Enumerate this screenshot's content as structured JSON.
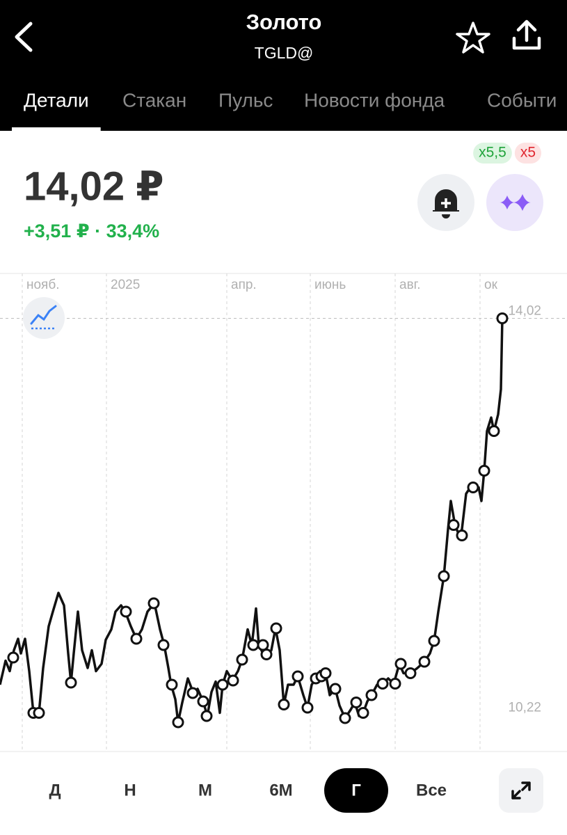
{
  "header": {
    "title": "Золото",
    "subtitle": "TGLD@"
  },
  "tabs": {
    "items": [
      "Детали",
      "Стакан",
      "Пульс",
      "Новости фонда",
      "Событи"
    ],
    "active": 0
  },
  "quote": {
    "price": "14,02 ₽",
    "change": "+3,51 ₽ · 33,4%",
    "badges": [
      "x5,5",
      "x5"
    ]
  },
  "chart_data": {
    "type": "line",
    "xlim": [
      0,
      407.5
    ],
    "ylim": [
      9.87,
      14.45
    ],
    "xticks": [
      {
        "value": 16,
        "label": "нояб."
      },
      {
        "value": 76.5,
        "label": "2025"
      },
      {
        "value": 163,
        "label": "апр."
      },
      {
        "value": 223,
        "label": "июнь"
      },
      {
        "value": 284,
        "label": "авг."
      },
      {
        "value": 345,
        "label": "ок"
      }
    ],
    "yticks": [
      {
        "value": 14.02,
        "label": "14,02"
      },
      {
        "value": 10.22,
        "label": "10,22"
      }
    ],
    "last_value_line": true,
    "series": [
      {
        "color": "#111111",
        "x": [
          0,
          4,
          7,
          10,
          13,
          15,
          18,
          21,
          24,
          28,
          31,
          35,
          38,
          42,
          46,
          49,
          51,
          53,
          56,
          59,
          63,
          66,
          69,
          73,
          76,
          80,
          83,
          87,
          90,
          94,
          98,
          102,
          106,
          111,
          115,
          118,
          121,
          123,
          126,
          128,
          131,
          135,
          139,
          142,
          146,
          149,
          152,
          155,
          158,
          160,
          163,
          167,
          171,
          174,
          178,
          181,
          184,
          186,
          189,
          192,
          195,
          198,
          201,
          204,
          207,
          211,
          214,
          218,
          221,
          224,
          227,
          230,
          234,
          237,
          241,
          244,
          248,
          252,
          255,
          258,
          261,
          264,
          267,
          271,
          275,
          279,
          283,
          287,
          290,
          295,
          300,
          305,
          309,
          312,
          315,
          319,
          322,
          324,
          327,
          330,
          332,
          335,
          338,
          341,
          344,
          346,
          348,
          350,
          353,
          355,
          358,
          360,
          361
        ],
        "values": [
          10.51,
          10.74,
          10.64,
          10.84,
          10.95,
          10.81,
          10.95,
          10.64,
          10.24,
          10.24,
          10.67,
          11.07,
          11.21,
          11.39,
          11.27,
          10.81,
          10.53,
          10.81,
          11.21,
          10.84,
          10.67,
          10.84,
          10.64,
          10.71,
          10.94,
          11.04,
          11.21,
          11.27,
          11.21,
          11.07,
          10.95,
          11.04,
          11.21,
          11.29,
          11.04,
          10.89,
          10.67,
          10.51,
          10.37,
          10.15,
          10.34,
          10.57,
          10.43,
          10.47,
          10.35,
          10.21,
          10.44,
          10.54,
          10.24,
          10.51,
          10.64,
          10.55,
          10.64,
          10.75,
          11.04,
          10.89,
          11.24,
          10.89,
          10.81,
          10.79,
          10.84,
          11.05,
          10.84,
          10.32,
          10.51,
          10.51,
          10.59,
          10.41,
          10.29,
          10.51,
          10.57,
          10.64,
          10.62,
          10.41,
          10.47,
          10.31,
          10.19,
          10.27,
          10.34,
          10.21,
          10.24,
          10.35,
          10.41,
          10.51,
          10.52,
          10.57,
          10.52,
          10.71,
          10.62,
          10.62,
          10.67,
          10.73,
          10.81,
          10.93,
          11.21,
          11.55,
          12.0,
          12.27,
          12.04,
          11.94,
          12.0,
          12.34,
          12.4,
          12.4,
          12.4,
          12.27,
          12.56,
          12.94,
          13.07,
          12.94,
          13.1,
          13.34,
          14.02
        ]
      },
      {
        "color": "#111111",
        "marker": "circle",
        "x": [
          9.5,
          24,
          28,
          51,
          90.5,
          98,
          110.5,
          117.5,
          123.5,
          128,
          138.5,
          146,
          148.5,
          160,
          167.5,
          174,
          182,
          189,
          191.5,
          198.5,
          204,
          214,
          221,
          227,
          231,
          234,
          241,
          248,
          256,
          261,
          267,
          275,
          284,
          288,
          295,
          305,
          312,
          319,
          326,
          332,
          340,
          348,
          355,
          361
        ],
        "values": [
          10.77,
          10.24,
          10.24,
          10.53,
          11.21,
          10.95,
          11.29,
          10.89,
          10.51,
          10.15,
          10.43,
          10.35,
          10.21,
          10.51,
          10.55,
          10.75,
          10.89,
          10.89,
          10.8,
          11.05,
          10.32,
          10.59,
          10.29,
          10.57,
          10.59,
          10.62,
          10.47,
          10.19,
          10.34,
          10.24,
          10.41,
          10.52,
          10.52,
          10.71,
          10.62,
          10.73,
          10.93,
          11.55,
          12.04,
          11.94,
          12.4,
          12.56,
          12.94,
          14.02
        ]
      }
    ]
  },
  "periods": {
    "items": [
      "Д",
      "Н",
      "М",
      "6М",
      "Г",
      "Все"
    ],
    "selected": 4
  }
}
